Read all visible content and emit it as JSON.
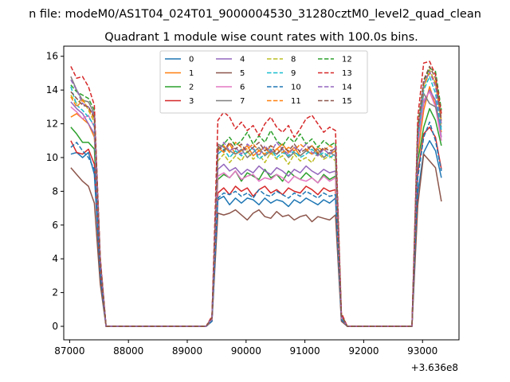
{
  "chart_data": {
    "type": "line",
    "suptitle": "n file: modeM0/AS1T04_024T01_9000004530_31280cztM0_level2_quad_clean",
    "title": "Quadrant 1 module wise count rates with 100.0s bins.",
    "xlabel": "",
    "ylabel": "",
    "x_offset_label": "+3.636e8",
    "xlim": [
      86900,
      93620
    ],
    "ylim": [
      -0.8,
      16.6
    ],
    "xticks": [
      87000,
      88000,
      89000,
      90000,
      91000,
      92000,
      93000
    ],
    "xtick_labels": [
      "87000",
      "88000",
      "89000",
      "90000",
      "91000",
      "92000",
      "93000"
    ],
    "yticks": [
      0,
      2,
      4,
      6,
      8,
      10,
      12,
      14,
      16
    ],
    "ytick_labels": [
      "0",
      "2",
      "4",
      "6",
      "8",
      "10",
      "12",
      "14",
      "16"
    ],
    "legend_position": "top-center",
    "legend_columns": 4,
    "x": [
      87020,
      87120,
      87220,
      87320,
      87420,
      87520,
      87620,
      87720,
      87820,
      87920,
      88020,
      88120,
      88220,
      88320,
      88420,
      88520,
      88620,
      88720,
      88820,
      88920,
      89020,
      89120,
      89220,
      89320,
      89420,
      89520,
      89620,
      89720,
      89820,
      89920,
      90020,
      90120,
      90220,
      90320,
      90420,
      90520,
      90620,
      90720,
      90820,
      90920,
      91020,
      91120,
      91220,
      91320,
      91420,
      91520,
      91620,
      91720,
      91820,
      91920,
      92020,
      92120,
      92220,
      92320,
      92420,
      92520,
      92620,
      92720,
      92820,
      92920,
      93020,
      93120,
      93220,
      93320
    ],
    "series": [
      {
        "name": "0",
        "color": "#1f77b4",
        "dash": "solid",
        "values": [
          10.2,
          10.3,
          10.0,
          10.3,
          9.0,
          3.0,
          0,
          0,
          0,
          0,
          0,
          0,
          0,
          0,
          0,
          0,
          0,
          0,
          0,
          0,
          0,
          0,
          0,
          0,
          0.3,
          7.5,
          7.7,
          7.2,
          7.6,
          7.3,
          7.6,
          7.5,
          7.2,
          7.6,
          7.3,
          7.5,
          7.4,
          7.1,
          7.5,
          7.3,
          7.6,
          7.4,
          7.2,
          7.5,
          7.3,
          7.6,
          0.4,
          0,
          0,
          0,
          0,
          0,
          0,
          0,
          0,
          0,
          0,
          0,
          0,
          7.9,
          10.3,
          11.0,
          10.4,
          8.8
        ]
      },
      {
        "name": "1",
        "color": "#ff7f0e",
        "dash": "solid",
        "values": [
          12.4,
          12.6,
          12.3,
          12.0,
          11.2,
          3.6,
          0,
          0,
          0,
          0,
          0,
          0,
          0,
          0,
          0,
          0,
          0,
          0,
          0,
          0,
          0,
          0,
          0,
          0,
          0.5,
          10.6,
          10.3,
          10.8,
          10.2,
          10.4,
          10.7,
          10.1,
          10.4,
          10.6,
          10.2,
          10.5,
          10.8,
          10.3,
          10.6,
          10.1,
          10.4,
          10.7,
          10.3,
          10.5,
          10.2,
          10.4,
          0.7,
          0,
          0,
          0,
          0,
          0,
          0,
          0,
          0,
          0,
          0,
          0,
          0,
          10.2,
          12.8,
          14.2,
          13.1,
          11.5
        ]
      },
      {
        "name": "2",
        "color": "#2ca02c",
        "dash": "solid",
        "values": [
          11.8,
          11.4,
          10.9,
          10.9,
          10.5,
          3.5,
          0,
          0,
          0,
          0,
          0,
          0,
          0,
          0,
          0,
          0,
          0,
          0,
          0,
          0,
          0,
          0,
          0,
          0,
          0.4,
          8.7,
          9.0,
          8.8,
          9.2,
          8.6,
          9.1,
          8.9,
          8.7,
          9.3,
          8.8,
          9.0,
          8.6,
          9.2,
          8.9,
          8.7,
          9.1,
          8.8,
          8.5,
          9.0,
          8.7,
          8.9,
          0.6,
          0,
          0,
          0,
          0,
          0,
          0,
          0,
          0,
          0,
          0,
          0,
          0,
          9.8,
          11.8,
          12.9,
          12.2,
          10.7
        ]
      },
      {
        "name": "3",
        "color": "#d62728",
        "dash": "solid",
        "values": [
          11.0,
          10.3,
          10.2,
          10.5,
          9.6,
          3.2,
          0,
          0,
          0,
          0,
          0,
          0,
          0,
          0,
          0,
          0,
          0,
          0,
          0,
          0,
          0,
          0,
          0,
          0,
          0.4,
          7.9,
          8.2,
          7.8,
          8.3,
          8.0,
          8.2,
          7.7,
          8.1,
          8.3,
          7.9,
          8.1,
          7.8,
          8.2,
          8.0,
          7.9,
          8.3,
          8.1,
          7.8,
          8.2,
          8.0,
          8.1,
          0.5,
          0,
          0,
          0,
          0,
          0,
          0,
          0,
          0,
          0,
          0,
          0,
          0,
          9.1,
          11.4,
          11.8,
          11.2,
          9.3
        ]
      },
      {
        "name": "4",
        "color": "#9467bd",
        "dash": "solid",
        "values": [
          13.3,
          12.9,
          12.6,
          12.0,
          11.4,
          3.7,
          0,
          0,
          0,
          0,
          0,
          0,
          0,
          0,
          0,
          0,
          0,
          0,
          0,
          0,
          0,
          0,
          0,
          0,
          0.4,
          9.3,
          9.6,
          9.2,
          9.4,
          9.0,
          9.3,
          9.1,
          9.5,
          9.2,
          9.0,
          9.4,
          9.2,
          8.9,
          9.3,
          9.1,
          9.5,
          9.2,
          9.0,
          9.3,
          9.1,
          9.2,
          0.5,
          0,
          0,
          0,
          0,
          0,
          0,
          0,
          0,
          0,
          0,
          0,
          0,
          10.8,
          13.2,
          14.0,
          13.4,
          11.2
        ]
      },
      {
        "name": "5",
        "color": "#8c564b",
        "dash": "solid",
        "values": [
          9.4,
          9.0,
          8.6,
          8.3,
          7.3,
          2.5,
          0,
          0,
          0,
          0,
          0,
          0,
          0,
          0,
          0,
          0,
          0,
          0,
          0,
          0,
          0,
          0,
          0,
          0,
          0.3,
          6.7,
          6.6,
          6.7,
          6.9,
          6.6,
          6.3,
          6.7,
          6.9,
          6.5,
          6.4,
          6.8,
          6.5,
          6.6,
          6.3,
          6.5,
          6.6,
          6.2,
          6.5,
          6.4,
          6.3,
          6.6,
          0.3,
          0,
          0,
          0,
          0,
          0,
          0,
          0,
          0,
          0,
          0,
          0,
          0,
          7.2,
          10.2,
          9.8,
          9.4,
          7.4
        ]
      },
      {
        "name": "6",
        "color": "#e377c2",
        "dash": "solid",
        "values": [
          13.0,
          12.7,
          12.3,
          12.5,
          11.8,
          3.8,
          0,
          0,
          0,
          0,
          0,
          0,
          0,
          0,
          0,
          0,
          0,
          0,
          0,
          0,
          0,
          0,
          0,
          0,
          0.4,
          8.9,
          9.1,
          8.8,
          9.2,
          8.7,
          8.9,
          9.0,
          8.6,
          8.8,
          8.7,
          9.0,
          8.8,
          8.5,
          8.9,
          8.7,
          8.6,
          8.8,
          8.5,
          8.9,
          8.6,
          8.8,
          0.5,
          0,
          0,
          0,
          0,
          0,
          0,
          0,
          0,
          0,
          0,
          0,
          0,
          10.6,
          13.4,
          13.9,
          13.0,
          11.0
        ]
      },
      {
        "name": "7",
        "color": "#7f7f7f",
        "dash": "solid",
        "values": [
          14.8,
          14.0,
          13.4,
          13.3,
          12.6,
          3.9,
          0,
          0,
          0,
          0,
          0,
          0,
          0,
          0,
          0,
          0,
          0,
          0,
          0,
          0,
          0,
          0,
          0,
          0,
          0.5,
          10.8,
          10.6,
          10.4,
          10.2,
          10.5,
          10.0,
          10.3,
          10.6,
          10.1,
          10.4,
          10.2,
          10.5,
          10.0,
          10.3,
          10.1,
          10.4,
          10.2,
          10.5,
          10.0,
          10.3,
          10.1,
          0.6,
          0,
          0,
          0,
          0,
          0,
          0,
          0,
          0,
          0,
          0,
          0,
          0,
          11.3,
          13.8,
          13.2,
          13.0,
          11.8
        ]
      },
      {
        "name": "8",
        "color": "#bcbd22",
        "dash": "dashed",
        "values": [
          13.7,
          13.2,
          13.5,
          12.8,
          12.1,
          3.8,
          0,
          0,
          0,
          0,
          0,
          0,
          0,
          0,
          0,
          0,
          0,
          0,
          0,
          0,
          0,
          0,
          0,
          0,
          0.5,
          9.8,
          10.2,
          9.7,
          10.1,
          9.8,
          10.4,
          9.9,
          10.2,
          9.7,
          10.3,
          9.9,
          10.1,
          9.6,
          10.2,
          9.8,
          10.0,
          9.7,
          10.3,
          9.9,
          10.1,
          9.8,
          0.6,
          0,
          0,
          0,
          0,
          0,
          0,
          0,
          0,
          0,
          0,
          0,
          0,
          11.5,
          14.1,
          15.2,
          14.4,
          12.0
        ]
      },
      {
        "name": "9",
        "color": "#17becf",
        "dash": "dashed",
        "values": [
          14.2,
          13.1,
          12.8,
          12.4,
          11.9,
          3.7,
          0,
          0,
          0,
          0,
          0,
          0,
          0,
          0,
          0,
          0,
          0,
          0,
          0,
          0,
          0,
          0,
          0,
          0,
          0.5,
          10.2,
          10.5,
          10.0,
          10.4,
          10.1,
          10.3,
          10.6,
          9.9,
          10.2,
          10.5,
          10.0,
          10.3,
          10.1,
          10.4,
          10.0,
          10.2,
          10.5,
          10.1,
          10.3,
          10.0,
          10.2,
          0.6,
          0,
          0,
          0,
          0,
          0,
          0,
          0,
          0,
          0,
          0,
          0,
          0,
          11.0,
          14.0,
          14.8,
          13.8,
          11.6
        ]
      },
      {
        "name": "10",
        "color": "#1f77b4",
        "dash": "dashed",
        "values": [
          10.6,
          10.9,
          10.4,
          10.0,
          9.3,
          3.1,
          0,
          0,
          0,
          0,
          0,
          0,
          0,
          0,
          0,
          0,
          0,
          0,
          0,
          0,
          0,
          0,
          0,
          0,
          0.3,
          7.6,
          7.9,
          7.8,
          8.0,
          7.7,
          7.9,
          7.6,
          8.1,
          7.8,
          7.7,
          8.0,
          7.8,
          7.6,
          7.9,
          7.7,
          8.0,
          7.8,
          7.6,
          7.9,
          7.7,
          7.8,
          0.4,
          0,
          0,
          0,
          0,
          0,
          0,
          0,
          0,
          0,
          0,
          0,
          0,
          8.8,
          11.2,
          12.1,
          11.0,
          9.2
        ]
      },
      {
        "name": "11",
        "color": "#ff7f0e",
        "dash": "dashed",
        "values": [
          13.6,
          13.0,
          13.4,
          12.9,
          12.3,
          3.9,
          0,
          0,
          0,
          0,
          0,
          0,
          0,
          0,
          0,
          0,
          0,
          0,
          0,
          0,
          0,
          0,
          0,
          0,
          0.5,
          10.4,
          10.7,
          10.3,
          10.9,
          10.6,
          10.5,
          10.8,
          10.4,
          10.2,
          10.7,
          10.5,
          10.3,
          10.6,
          10.4,
          10.8,
          10.5,
          10.2,
          10.6,
          10.4,
          10.7,
          10.5,
          0.7,
          0,
          0,
          0,
          0,
          0,
          0,
          0,
          0,
          0,
          0,
          0,
          0,
          11.7,
          14.3,
          15.0,
          14.5,
          12.3
        ]
      },
      {
        "name": "12",
        "color": "#2ca02c",
        "dash": "dashed",
        "values": [
          14.3,
          13.9,
          13.7,
          13.5,
          12.8,
          4.0,
          0,
          0,
          0,
          0,
          0,
          0,
          0,
          0,
          0,
          0,
          0,
          0,
          0,
          0,
          0,
          0,
          0,
          0,
          0.5,
          10.5,
          10.8,
          11.2,
          10.7,
          11.0,
          11.5,
          10.8,
          11.3,
          10.9,
          11.6,
          11.0,
          10.7,
          11.2,
          10.9,
          11.4,
          10.8,
          11.1,
          10.6,
          11.0,
          10.7,
          10.9,
          0.7,
          0,
          0,
          0,
          0,
          0,
          0,
          0,
          0,
          0,
          0,
          0,
          0,
          11.9,
          14.5,
          15.3,
          15.1,
          12.8
        ]
      },
      {
        "name": "13",
        "color": "#d62728",
        "dash": "dashed",
        "values": [
          15.4,
          14.7,
          14.8,
          14.2,
          13.1,
          4.1,
          0,
          0,
          0,
          0,
          0,
          0,
          0,
          0,
          0,
          0,
          0,
          0,
          0,
          0,
          0,
          0,
          0,
          0,
          0.6,
          12.2,
          12.7,
          12.4,
          11.7,
          12.1,
          11.6,
          11.9,
          11.3,
          12.0,
          12.4,
          11.8,
          11.5,
          11.9,
          11.2,
          11.7,
          12.3,
          12.5,
          12.0,
          11.5,
          11.8,
          11.6,
          0.8,
          0,
          0,
          0,
          0,
          0,
          0,
          0,
          0,
          0,
          0,
          0,
          0,
          12.4,
          15.6,
          15.7,
          14.9,
          12.6
        ]
      },
      {
        "name": "14",
        "color": "#9467bd",
        "dash": "dashed",
        "values": [
          14.6,
          14.0,
          13.2,
          13.0,
          12.5,
          3.9,
          0,
          0,
          0,
          0,
          0,
          0,
          0,
          0,
          0,
          0,
          0,
          0,
          0,
          0,
          0,
          0,
          0,
          0,
          0.5,
          10.3,
          10.9,
          10.4,
          10.6,
          10.2,
          10.8,
          10.5,
          10.1,
          10.7,
          10.3,
          10.9,
          10.5,
          10.2,
          10.6,
          10.4,
          10.8,
          10.3,
          10.1,
          10.5,
          10.2,
          10.6,
          0.6,
          0,
          0,
          0,
          0,
          0,
          0,
          0,
          0,
          0,
          0,
          0,
          0,
          11.4,
          14.4,
          15.1,
          14.2,
          12.0
        ]
      },
      {
        "name": "15",
        "color": "#8c564b",
        "dash": "dashed",
        "values": [
          13.9,
          13.5,
          13.1,
          13.0,
          12.4,
          3.8,
          0,
          0,
          0,
          0,
          0,
          0,
          0,
          0,
          0,
          0,
          0,
          0,
          0,
          0,
          0,
          0,
          0,
          0,
          0.5,
          10.7,
          10.4,
          10.9,
          10.5,
          10.8,
          10.3,
          10.6,
          10.9,
          10.4,
          10.7,
          10.2,
          10.6,
          10.4,
          10.8,
          10.3,
          10.5,
          10.7,
          10.2,
          10.6,
          10.4,
          10.5,
          0.6,
          0,
          0,
          0,
          0,
          0,
          0,
          0,
          0,
          0,
          0,
          0,
          0,
          11.6,
          14.6,
          15.4,
          14.7,
          12.2
        ]
      }
    ]
  }
}
